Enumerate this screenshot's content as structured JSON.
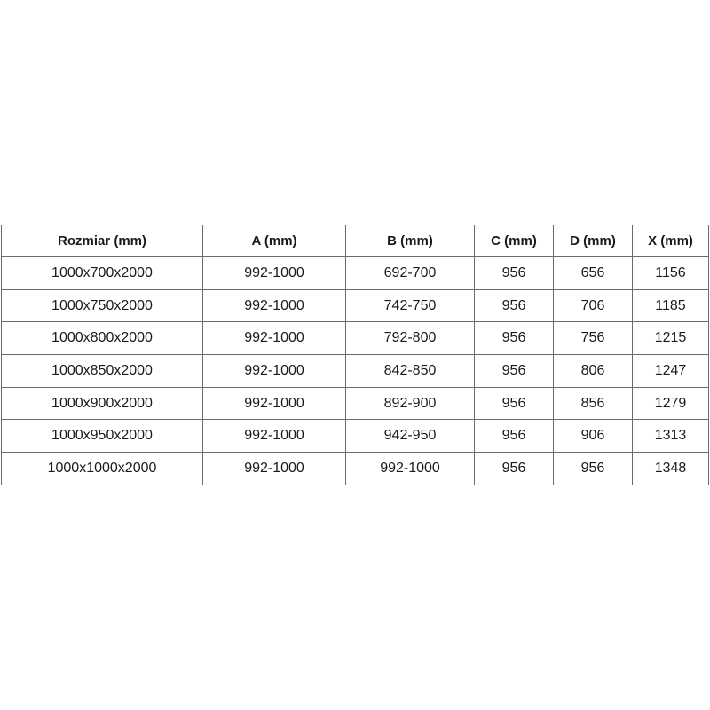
{
  "table": {
    "headers": [
      "Rozmiar (mm)",
      "A (mm)",
      "B (mm)",
      "C (mm)",
      "D (mm)",
      "X (mm)"
    ],
    "rows": [
      [
        "1000x700x2000",
        "992-1000",
        "692-700",
        "956",
        "656",
        "1156"
      ],
      [
        "1000x750x2000",
        "992-1000",
        "742-750",
        "956",
        "706",
        "1185"
      ],
      [
        "1000x800x2000",
        "992-1000",
        "792-800",
        "956",
        "756",
        "1215"
      ],
      [
        "1000x850x2000",
        "992-1000",
        "842-850",
        "956",
        "806",
        "1247"
      ],
      [
        "1000x900x2000",
        "992-1000",
        "892-900",
        "956",
        "856",
        "1279"
      ],
      [
        "1000x950x2000",
        "992-1000",
        "942-950",
        "956",
        "906",
        "1313"
      ],
      [
        "1000x1000x2000",
        "992-1000",
        "992-1000",
        "956",
        "956",
        "1348"
      ]
    ]
  }
}
